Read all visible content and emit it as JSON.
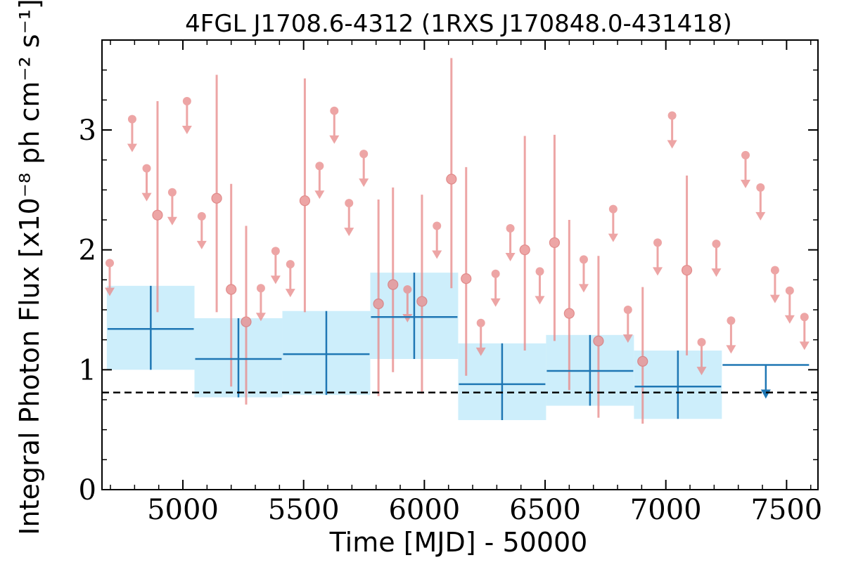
{
  "chart_data": {
    "type": "scatter",
    "title": "4FGL J1708.6-4312 (1RXS J170848.0-431418)",
    "xlabel": "Time [MJD] - 50000",
    "ylabel": "Integral Photon Flux [x10⁻⁸ ph cm⁻² s⁻¹]",
    "xlim": [
      4665,
      7630
    ],
    "ylim": [
      0,
      3.75
    ],
    "xticks": [
      5000,
      5500,
      6000,
      6500,
      7000,
      7500
    ],
    "xtick_labels": [
      "5000",
      "5500",
      "6000",
      "6500",
      "7000",
      "7500"
    ],
    "yticks": [
      0,
      1,
      2,
      3
    ],
    "ytick_labels": [
      "0",
      "1",
      "2",
      "3"
    ],
    "grid": false,
    "colors": {
      "short_bins": "#e88c8c",
      "long_bins": "#1f77b4",
      "band_fill": "#cdeefb",
      "reference_line": "#000000"
    },
    "reference_line": {
      "y": 0.81,
      "style": "dashed"
    },
    "long_bins": [
      {
        "x": 4867,
        "x_lo": 4685,
        "x_hi": 5048,
        "y": 1.34,
        "y_lo": 1.0,
        "y_hi": 1.7,
        "upper_limit": false
      },
      {
        "x": 5230,
        "x_lo": 5048,
        "x_hi": 5412,
        "y": 1.09,
        "y_lo": 0.77,
        "y_hi": 1.43,
        "upper_limit": false
      },
      {
        "x": 5594,
        "x_lo": 5412,
        "x_hi": 5776,
        "y": 1.13,
        "y_lo": 0.79,
        "y_hi": 1.49,
        "upper_limit": false
      },
      {
        "x": 5958,
        "x_lo": 5776,
        "x_hi": 6140,
        "y": 1.44,
        "y_lo": 1.09,
        "y_hi": 1.81,
        "upper_limit": false
      },
      {
        "x": 6322,
        "x_lo": 6140,
        "x_hi": 6504,
        "y": 0.88,
        "y_lo": 0.58,
        "y_hi": 1.22,
        "upper_limit": false
      },
      {
        "x": 6686,
        "x_lo": 6504,
        "x_hi": 6868,
        "y": 0.99,
        "y_lo": 0.7,
        "y_hi": 1.29,
        "upper_limit": false
      },
      {
        "x": 7050,
        "x_lo": 6868,
        "x_hi": 7232,
        "y": 0.86,
        "y_lo": 0.59,
        "y_hi": 1.16,
        "upper_limit": false
      },
      {
        "x": 7414,
        "x_lo": 7232,
        "x_hi": 7596,
        "y": 1.04,
        "upper_limit": true
      }
    ],
    "short_bins": [
      {
        "x": 4697,
        "y": 1.89,
        "upper_limit": true
      },
      {
        "x": 4790,
        "y": 3.09,
        "upper_limit": true
      },
      {
        "x": 4850,
        "y": 2.68,
        "upper_limit": true
      },
      {
        "x": 4895,
        "y": 2.29,
        "y_lo": 1.48,
        "y_hi": 3.24,
        "upper_limit": false
      },
      {
        "x": 4956,
        "y": 2.48,
        "upper_limit": true
      },
      {
        "x": 5017,
        "y": 3.24,
        "upper_limit": true
      },
      {
        "x": 5078,
        "y": 2.28,
        "upper_limit": true
      },
      {
        "x": 5140,
        "y": 2.43,
        "y_lo": 1.48,
        "y_hi": 3.46,
        "upper_limit": false
      },
      {
        "x": 5200,
        "y": 1.67,
        "y_lo": 0.86,
        "y_hi": 2.55,
        "upper_limit": false
      },
      {
        "x": 5262,
        "y": 1.4,
        "y_lo": 0.71,
        "y_hi": 2.2,
        "upper_limit": false
      },
      {
        "x": 5323,
        "y": 1.68,
        "upper_limit": true
      },
      {
        "x": 5384,
        "y": 1.99,
        "upper_limit": true
      },
      {
        "x": 5445,
        "y": 1.88,
        "upper_limit": true
      },
      {
        "x": 5505,
        "y": 2.41,
        "y_lo": 1.48,
        "y_hi": 3.43,
        "upper_limit": false
      },
      {
        "x": 5566,
        "y": 2.7,
        "upper_limit": true
      },
      {
        "x": 5627,
        "y": 3.16,
        "upper_limit": true
      },
      {
        "x": 5688,
        "y": 2.39,
        "upper_limit": true
      },
      {
        "x": 5749,
        "y": 2.8,
        "upper_limit": true
      },
      {
        "x": 5810,
        "y": 1.55,
        "y_lo": 0.78,
        "y_hi": 2.42,
        "upper_limit": false
      },
      {
        "x": 5870,
        "y": 1.71,
        "y_lo": 0.98,
        "y_hi": 2.52,
        "upper_limit": false
      },
      {
        "x": 5930,
        "y": 1.67,
        "upper_limit": true
      },
      {
        "x": 5990,
        "y": 1.57,
        "y_lo": 0.8,
        "y_hi": 2.46,
        "upper_limit": false
      },
      {
        "x": 6052,
        "y": 2.2,
        "upper_limit": true
      },
      {
        "x": 6112,
        "y": 2.59,
        "y_lo": 1.68,
        "y_hi": 3.6,
        "upper_limit": false
      },
      {
        "x": 6173,
        "y": 1.76,
        "y_lo": 0.95,
        "y_hi": 2.69,
        "upper_limit": false
      },
      {
        "x": 6234,
        "y": 1.39,
        "upper_limit": true
      },
      {
        "x": 6295,
        "y": 1.8,
        "upper_limit": true
      },
      {
        "x": 6356,
        "y": 2.18,
        "upper_limit": true
      },
      {
        "x": 6416,
        "y": 2.0,
        "y_lo": 1.16,
        "y_hi": 2.95,
        "upper_limit": false
      },
      {
        "x": 6478,
        "y": 1.82,
        "upper_limit": true
      },
      {
        "x": 6539,
        "y": 2.06,
        "y_lo": 1.24,
        "y_hi": 2.96,
        "upper_limit": false
      },
      {
        "x": 6600,
        "y": 1.47,
        "y_lo": 0.83,
        "y_hi": 2.25,
        "upper_limit": false
      },
      {
        "x": 6660,
        "y": 1.92,
        "upper_limit": true
      },
      {
        "x": 6721,
        "y": 1.24,
        "y_lo": 0.6,
        "y_hi": 1.95,
        "upper_limit": false
      },
      {
        "x": 6782,
        "y": 2.34,
        "upper_limit": true
      },
      {
        "x": 6843,
        "y": 1.5,
        "upper_limit": true
      },
      {
        "x": 6904,
        "y": 1.07,
        "y_lo": 0.55,
        "y_hi": 1.69,
        "upper_limit": false
      },
      {
        "x": 6966,
        "y": 2.06,
        "upper_limit": true
      },
      {
        "x": 7026,
        "y": 3.12,
        "upper_limit": true
      },
      {
        "x": 7087,
        "y": 1.83,
        "y_lo": 1.12,
        "y_hi": 2.62,
        "upper_limit": false
      },
      {
        "x": 7148,
        "y": 1.23,
        "upper_limit": true
      },
      {
        "x": 7209,
        "y": 2.05,
        "upper_limit": true
      },
      {
        "x": 7270,
        "y": 1.41,
        "upper_limit": true
      },
      {
        "x": 7330,
        "y": 2.79,
        "upper_limit": true
      },
      {
        "x": 7392,
        "y": 2.52,
        "upper_limit": true
      },
      {
        "x": 7452,
        "y": 1.83,
        "upper_limit": true
      },
      {
        "x": 7513,
        "y": 1.66,
        "upper_limit": true
      },
      {
        "x": 7574,
        "y": 1.44,
        "upper_limit": true
      }
    ]
  }
}
